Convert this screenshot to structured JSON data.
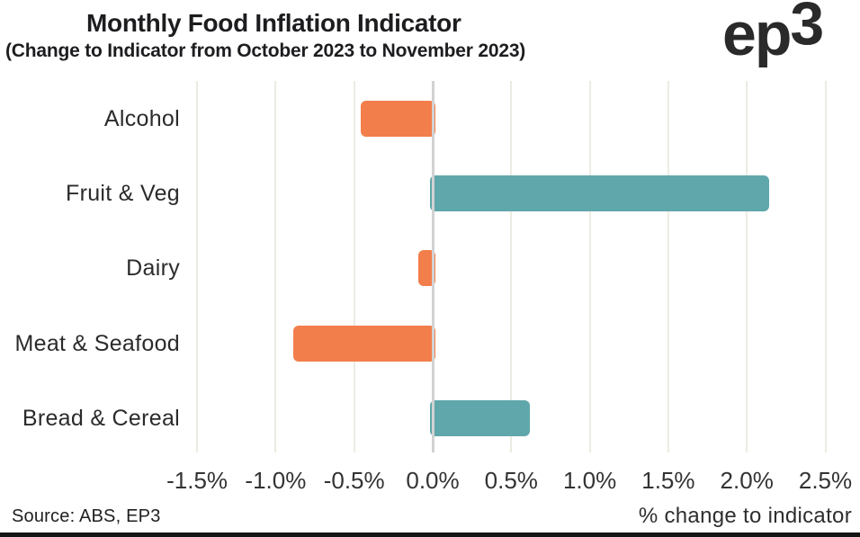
{
  "header": {
    "title": "Monthly Food Inflation Indicator",
    "subtitle": "(Change to Indicator from October 2023 to November 2023)"
  },
  "logo": {
    "main": "ep",
    "sup": "3"
  },
  "footer": {
    "source": "Source: ABS, EP3"
  },
  "chart_data": {
    "type": "bar",
    "orientation": "horizontal",
    "title": "Monthly Food Inflation Indicator",
    "subtitle": "(Change to Indicator from October 2023 to November 2023)",
    "categories": [
      "Alcohol",
      "Fruit & Veg",
      "Dairy",
      "Meat & Seafood",
      "Bread & Cereal"
    ],
    "values": [
      -0.46,
      2.14,
      -0.09,
      -0.89,
      0.62
    ],
    "unit": "%",
    "xlabel": "% change to indicator",
    "xlim": [
      -1.6,
      2.7
    ],
    "x_tick_values": [
      -1.5,
      -1.0,
      -0.5,
      0.0,
      0.5,
      1.0,
      1.5,
      2.0,
      2.5
    ],
    "x_tick_labels": [
      "-1.5%",
      "-1.0%",
      "-0.5%",
      "0.0%",
      "0.5%",
      "1.0%",
      "1.5%",
      "2.0%",
      "2.5%"
    ],
    "grid": "vertical-gridlines",
    "legend": "none",
    "colors": {
      "positive": "#5fa7ab",
      "negative": "#f27e4b",
      "gridline": "#ecebe2",
      "zero_line": "#d2d2d2"
    }
  }
}
